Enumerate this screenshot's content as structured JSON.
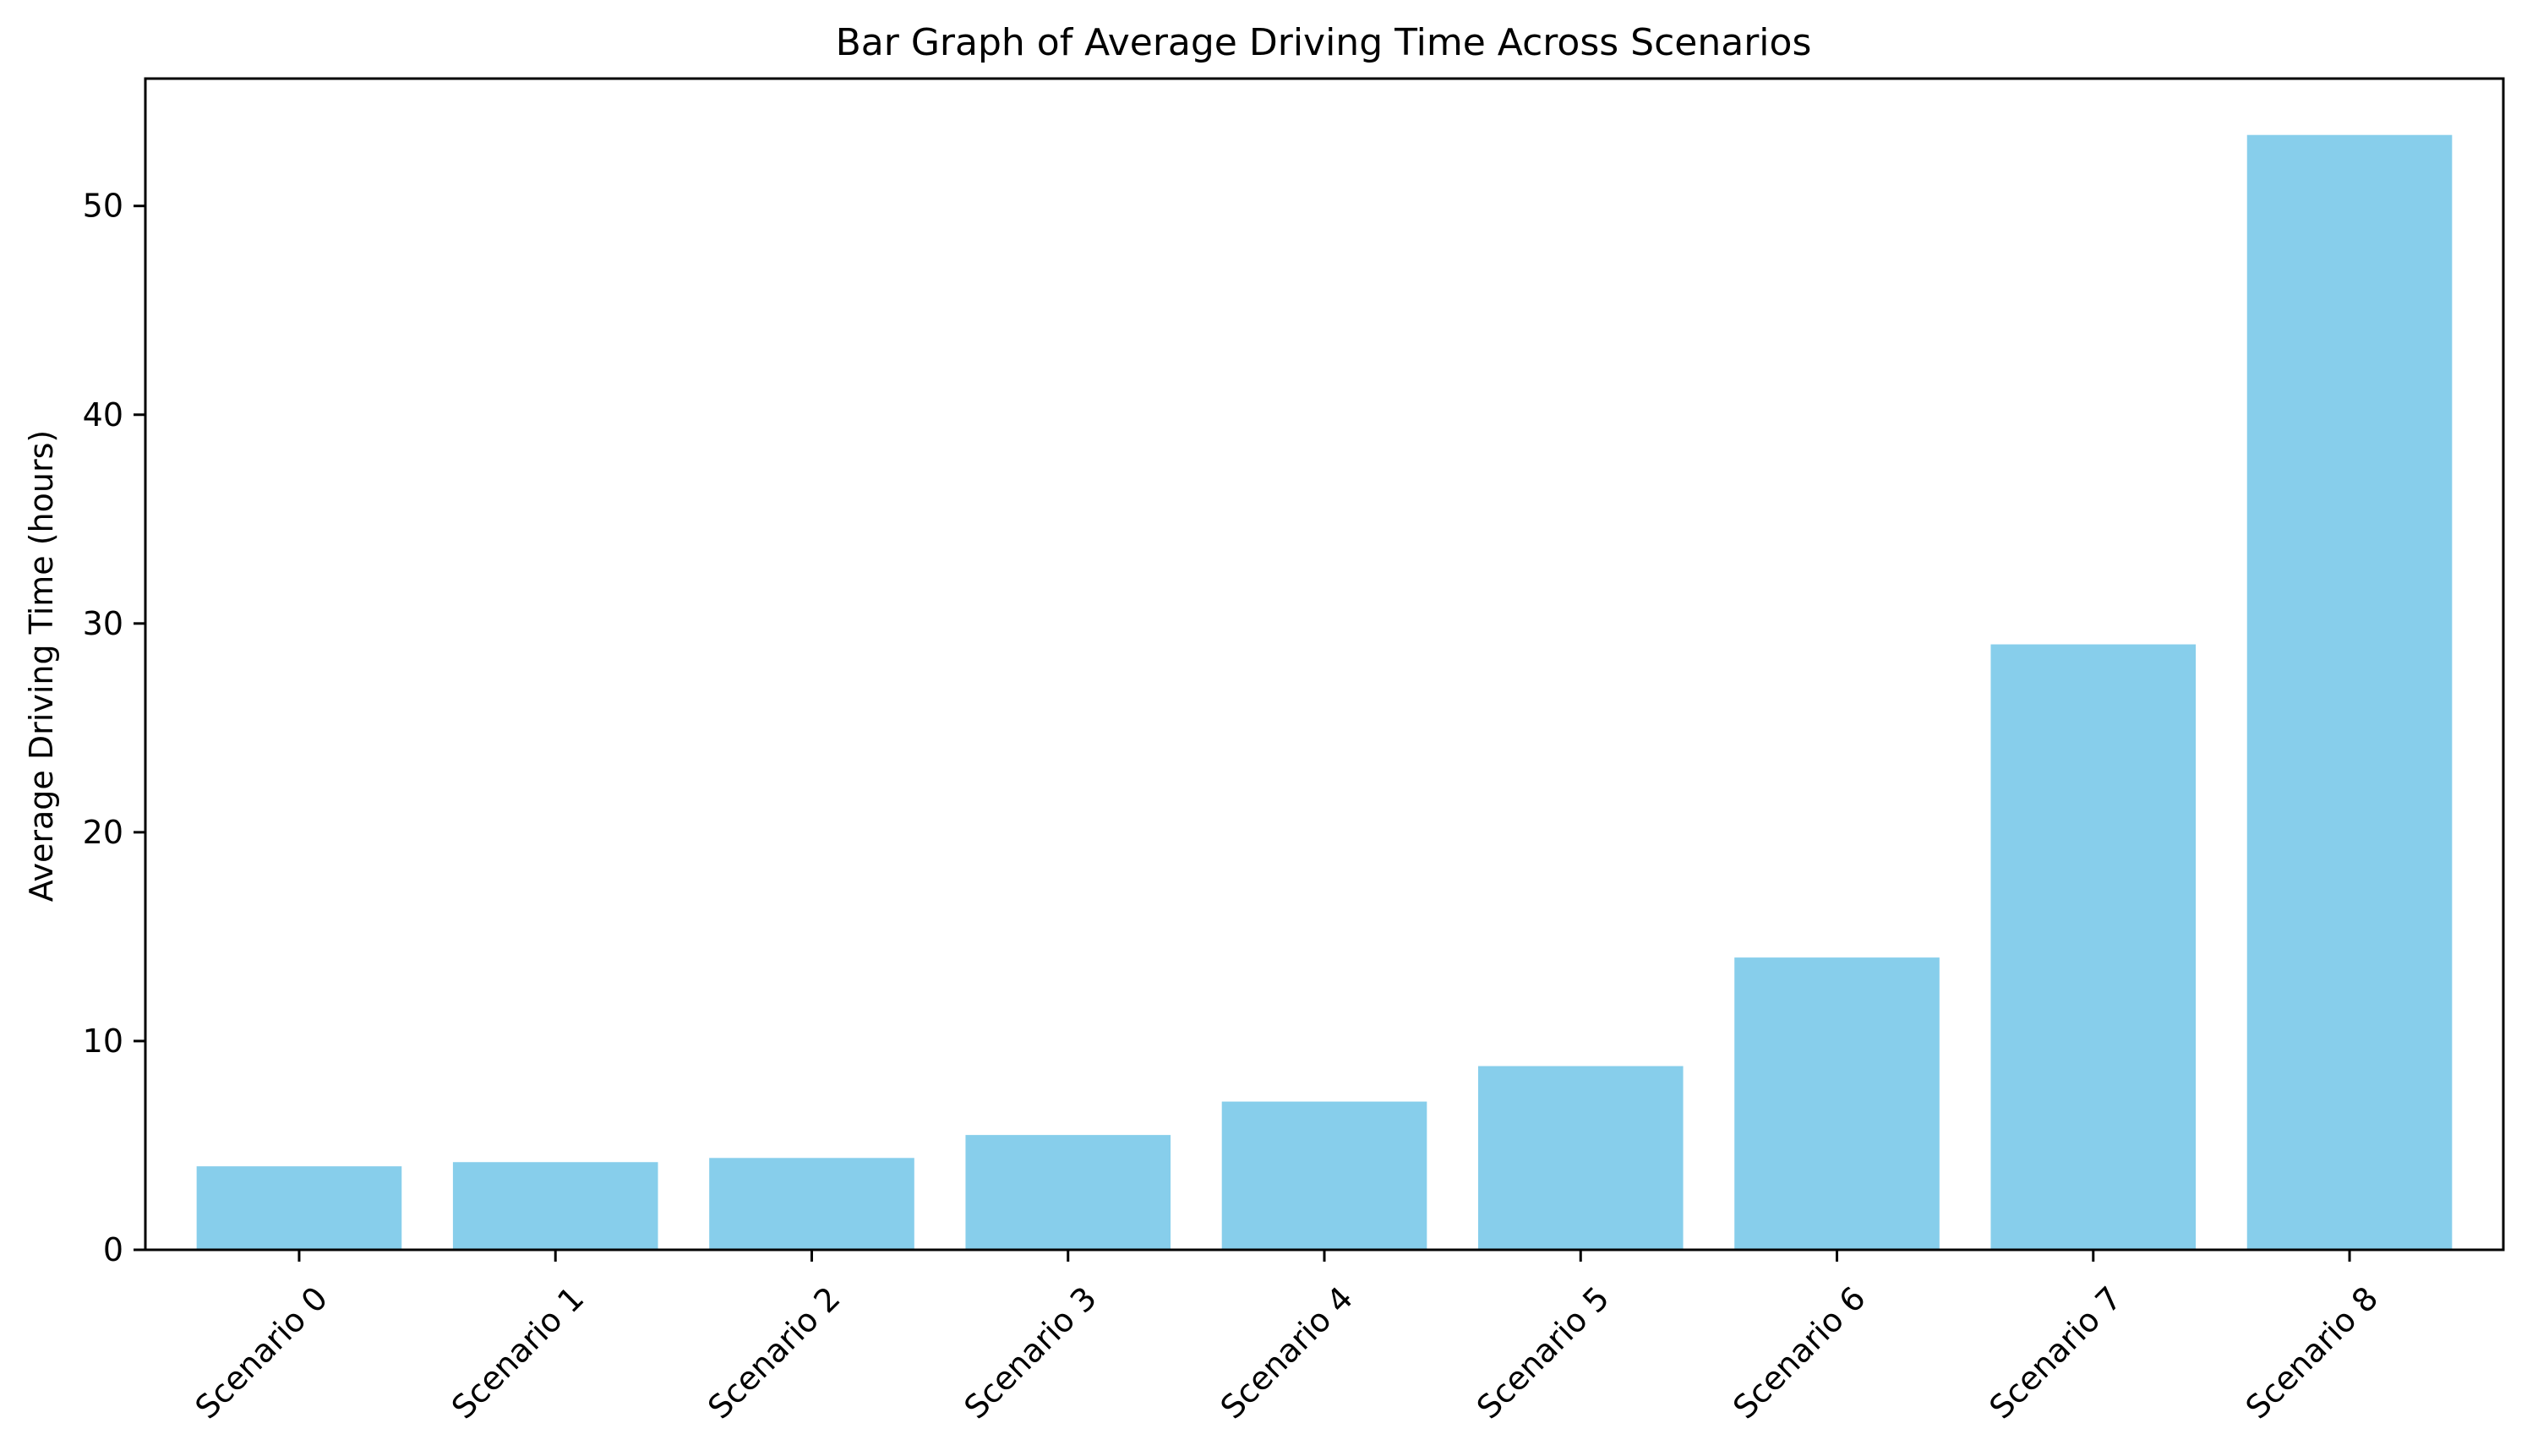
{
  "chart_data": {
    "type": "bar",
    "title": "Bar Graph of Average Driving Time Across Scenarios",
    "xlabel": "",
    "ylabel": "Average Driving Time (hours)",
    "categories": [
      "Scenario 0",
      "Scenario 1",
      "Scenario 2",
      "Scenario 3",
      "Scenario 4",
      "Scenario 5",
      "Scenario 6",
      "Scenario 7",
      "Scenario 8"
    ],
    "values": [
      4.0,
      4.2,
      4.4,
      5.5,
      7.1,
      8.8,
      14.0,
      29.0,
      53.4
    ],
    "ylim": [
      0,
      56.1
    ],
    "yticks": [
      0,
      10,
      20,
      30,
      40,
      50
    ],
    "bar_color": "#87CEEB",
    "grid": false,
    "legend": "none"
  }
}
